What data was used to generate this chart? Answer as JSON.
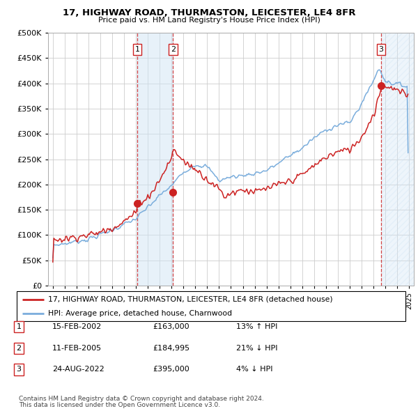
{
  "title": "17, HIGHWAY ROAD, THURMASTON, LEICESTER, LE4 8FR",
  "subtitle": "Price paid vs. HM Land Registry's House Price Index (HPI)",
  "legend_line1": "17, HIGHWAY ROAD, THURMASTON, LEICESTER, LE4 8FR (detached house)",
  "legend_line2": "HPI: Average price, detached house, Charnwood",
  "transactions": [
    {
      "label": "1",
      "date": "15-FEB-2002",
      "price": "£163,000",
      "pct": "13%",
      "dir": "↑",
      "x_year": 2002.12
    },
    {
      "label": "2",
      "date": "11-FEB-2005",
      "price": "£184,995",
      "pct": "21%",
      "dir": "↓",
      "x_year": 2005.12
    },
    {
      "label": "3",
      "date": "24-AUG-2022",
      "price": "£395,000",
      "pct": "4%",
      "dir": "↓",
      "x_year": 2022.65
    }
  ],
  "sale_prices": [
    163000,
    184995,
    395000
  ],
  "footer1": "Contains HM Land Registry data © Crown copyright and database right 2024.",
  "footer2": "This data is licensed under the Open Government Licence v3.0.",
  "hpi_color": "#7aaddc",
  "price_color": "#cc2222",
  "ylim": [
    0,
    500000
  ],
  "ytick_vals": [
    0,
    50000,
    100000,
    150000,
    200000,
    250000,
    300000,
    350000,
    400000,
    450000,
    500000
  ],
  "xlim": [
    1994.6,
    2025.4
  ],
  "xtick_start": 1995,
  "xtick_end": 2025,
  "background_color": "#ffffff",
  "grid_color": "#cccccc",
  "shade_color": "#d0e4f5",
  "hatch_color": "#ccddee"
}
